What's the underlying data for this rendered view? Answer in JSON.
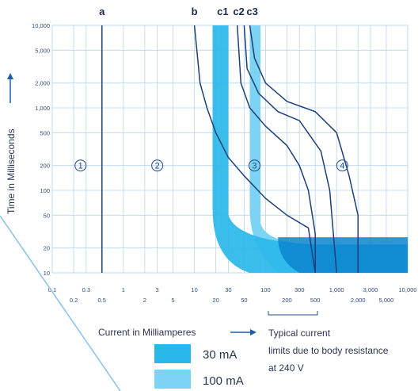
{
  "chart_data": {
    "type": "line",
    "title": "",
    "xlabel": "Current in Milliamperes",
    "ylabel": "Time in Milliseconds",
    "x_scale": "log",
    "y_scale": "log",
    "xlim": [
      0.1,
      10000
    ],
    "ylim": [
      10,
      10000
    ],
    "grid": true,
    "x_ticks_upper": [
      "0.1",
      "0.3",
      "1",
      "3",
      "10",
      "30",
      "100",
      "300",
      "1,000",
      "3,000",
      "10,000"
    ],
    "x_ticks_lower": [
      "0.2",
      "0.5",
      "2",
      "5",
      "20",
      "50",
      "200",
      "500",
      "2,000",
      "5,000"
    ],
    "y_ticks": [
      "10,000",
      "5,000",
      "2,000",
      "1,000",
      "500",
      "200",
      "100",
      "50",
      "20",
      "10"
    ],
    "curve_labels": [
      "a",
      "b",
      "c1",
      "c2",
      "c3"
    ],
    "series": [
      {
        "name": "a",
        "points": [
          [
            0.5,
            10
          ],
          [
            0.5,
            10000
          ]
        ]
      },
      {
        "name": "b",
        "points": [
          [
            10,
            10000
          ],
          [
            12,
            2000
          ],
          [
            15,
            1000
          ],
          [
            20,
            500
          ],
          [
            30,
            250
          ],
          [
            50,
            150
          ],
          [
            100,
            80
          ],
          [
            200,
            50
          ],
          [
            400,
            35
          ],
          [
            500,
            10
          ]
        ]
      },
      {
        "name": "c1",
        "points": [
          [
            40,
            10000
          ],
          [
            45,
            2000
          ],
          [
            60,
            1000
          ],
          [
            100,
            600
          ],
          [
            200,
            350
          ],
          [
            300,
            200
          ],
          [
            400,
            100
          ],
          [
            500,
            30
          ],
          [
            500,
            10
          ]
        ]
      },
      {
        "name": "c2",
        "points": [
          [
            50,
            10000
          ],
          [
            55,
            3000
          ],
          [
            80,
            1500
          ],
          [
            150,
            900
          ],
          [
            300,
            700
          ],
          [
            600,
            300
          ],
          [
            800,
            100
          ],
          [
            1000,
            10
          ]
        ]
      },
      {
        "name": "c3",
        "points": [
          [
            60,
            10000
          ],
          [
            70,
            4000
          ],
          [
            100,
            2000
          ],
          [
            200,
            1200
          ],
          [
            500,
            900
          ],
          [
            1000,
            500
          ],
          [
            1500,
            150
          ],
          [
            2000,
            50
          ],
          [
            2000,
            10
          ]
        ]
      }
    ],
    "zones": [
      "1",
      "2",
      "3",
      "4"
    ],
    "bands": [
      {
        "name": "30 mA",
        "color": "#2ab7ea"
      },
      {
        "name": "100 mA",
        "color": "#7cd3f4"
      }
    ],
    "body_resistance_range": [
      200,
      500
    ],
    "annotation": [
      "Typical current",
      "limits due to body resistance",
      "at 240 V"
    ]
  },
  "legend": [
    {
      "label": "30 mA",
      "color": "#2ab7ea"
    },
    {
      "label": "100 mA",
      "color": "#7cd3f4"
    }
  ],
  "colors": {
    "grid": "#b9d6ee",
    "curve": "#1d3f78",
    "dark_band": "#0a84cf",
    "axis_text": "#2f4d78"
  }
}
